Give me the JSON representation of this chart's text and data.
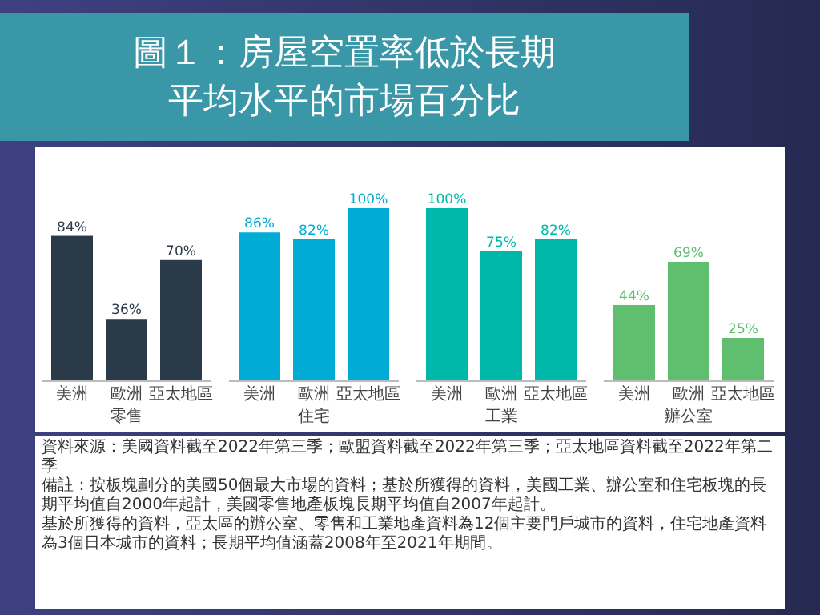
{
  "chart_data": [
    {
      "type": "bar",
      "title": "圖１：房屋空置率低於長期平均水平的市場百分比",
      "xlabel": "零售",
      "categories": [
        "美洲",
        "歐洲",
        "亞太地區"
      ],
      "values": [
        84,
        36,
        70
      ],
      "value_labels": [
        "84%",
        "36%",
        "70%"
      ],
      "color": "#2a3a48"
    },
    {
      "type": "bar",
      "xlabel": "住宅",
      "categories": [
        "美洲",
        "歐洲",
        "亞太地區"
      ],
      "values": [
        86,
        82,
        100
      ],
      "value_labels": [
        "86%",
        "82%",
        "100%"
      ],
      "color": "#00acd6"
    },
    {
      "type": "bar",
      "xlabel": "工業",
      "categories": [
        "美洲",
        "歐洲",
        "亞太地區"
      ],
      "values": [
        100,
        75,
        82
      ],
      "value_labels": [
        "100%",
        "75%",
        "82%"
      ],
      "color": "#00b8a9"
    },
    {
      "type": "bar",
      "xlabel": "辦公室",
      "categories": [
        "美洲",
        "歐洲",
        "亞太地區"
      ],
      "values": [
        44,
        69,
        25
      ],
      "value_labels": [
        "44%",
        "69%",
        "25%"
      ],
      "color": "#5fbf6e",
      "annotations": [
        "資料來源：美國資料截至2022年第三季；歐盟資料截至2022年第三季；亞太地區資料截至2022年第二季",
        "備註：按板塊劃分的美國50個最大市場的資料；基於所獲得的資料，美國工業、辦公室和住宅板塊的長期平均值自2000年起計，美國零售地產板塊長期平均值自2007年起計。",
        "基於所獲得的資料，亞太區的辦公室、零售和工業地產資料為12個主要門戶城市的資料，住宅地產資料為3個日本城市的資料；長期平均值涵蓋2008年至2021年期間。"
      ]
    }
  ]
}
